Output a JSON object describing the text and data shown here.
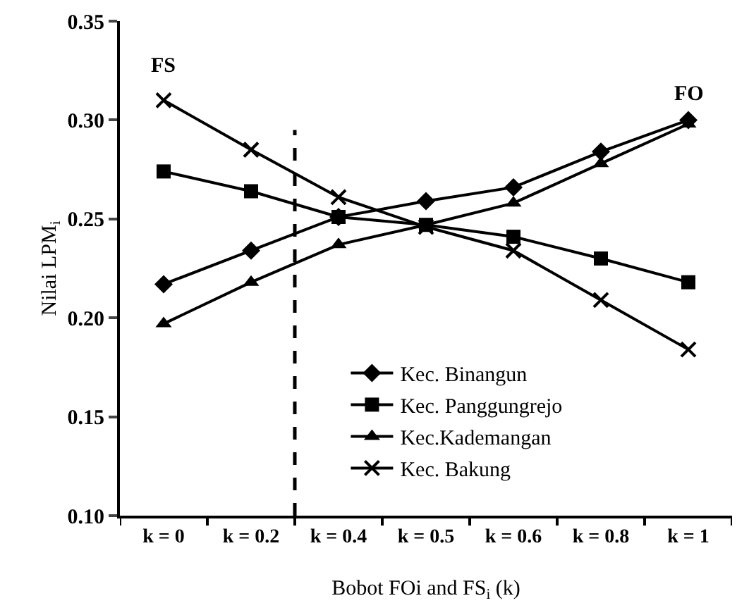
{
  "chart_data": {
    "type": "line",
    "xlabel": "Bobot FOi and FS$_{i}$ (k)",
    "ylabel": "Nilai LPM$_{i}$",
    "categories": [
      "k = 0",
      "k = 0.2",
      "k = 0.4",
      "k = 0.5",
      "k = 0.6",
      "k = 0.8",
      "k = 1"
    ],
    "series": [
      {
        "name": "Kec. Binangun",
        "color": "#000000",
        "marker": "diamond",
        "values": [
          0.217,
          0.234,
          0.251,
          0.259,
          0.266,
          0.284,
          0.3
        ]
      },
      {
        "name": "Kec. Panggungrejo",
        "color": "#000000",
        "marker": "square",
        "values": [
          0.274,
          0.264,
          0.251,
          0.247,
          0.241,
          0.23,
          0.218
        ]
      },
      {
        "name": "Kec.Kademangan",
        "color": "#000000",
        "marker": "triangle",
        "values": [
          0.197,
          0.218,
          0.237,
          0.247,
          0.258,
          0.278,
          0.298
        ]
      },
      {
        "name": "Kec. Bakung",
        "color": "#000000",
        "marker": "cross",
        "values": [
          0.31,
          0.285,
          0.261,
          0.246,
          0.234,
          0.209,
          0.184
        ]
      }
    ],
    "ylim": [
      0.1,
      0.35
    ],
    "yticks": [
      {
        "value": 0.1,
        "label": "0.10"
      },
      0.15,
      {
        "value": 0.2,
        "label": "0.20"
      },
      0.25,
      {
        "value": 0.3,
        "label": "0.30"
      },
      0.35
    ],
    "annotations": [
      "FS",
      "FO"
    ],
    "grid": false,
    "legend": "bottom",
    "line_style": "solid"
  }
}
